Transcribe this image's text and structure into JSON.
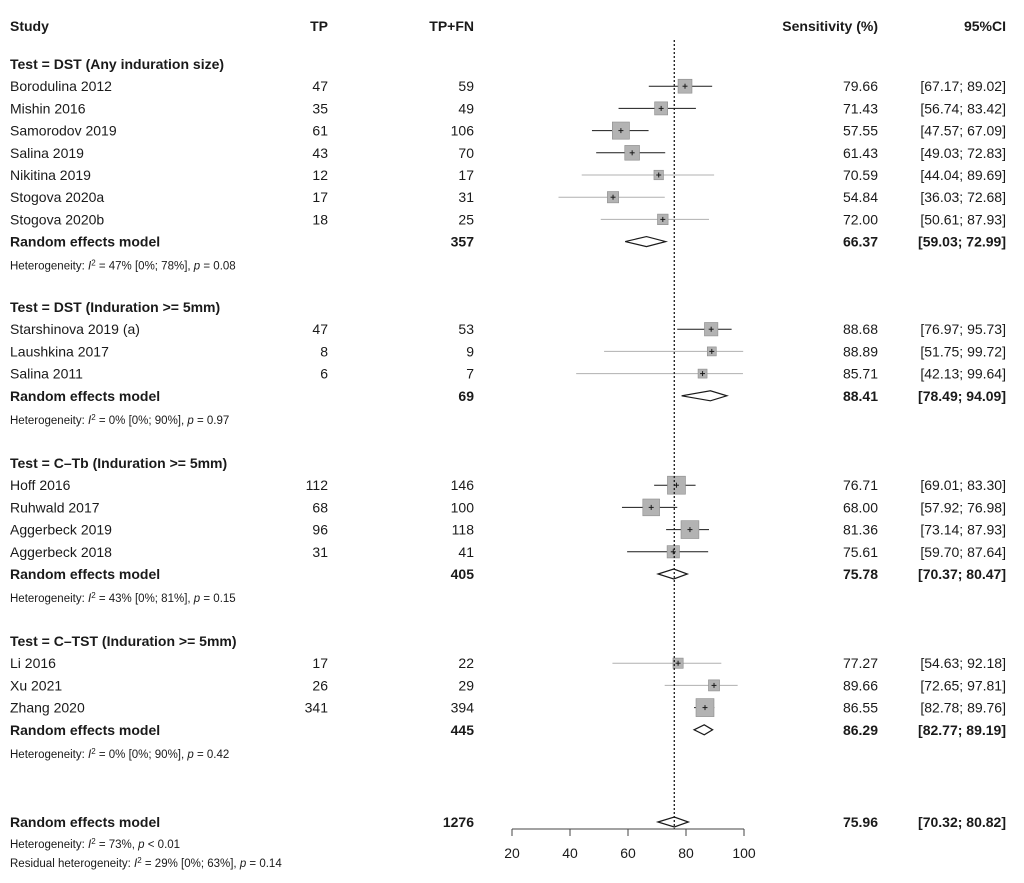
{
  "chart_data": {
    "type": "forest",
    "headers": {
      "study": "Study",
      "tp": "TP",
      "tpfn": "TP+FN",
      "sens": "Sensitivity (%)",
      "ci": "95%CI"
    },
    "xlim": [
      20,
      100
    ],
    "xticks": [
      "20",
      "40",
      "60",
      "80",
      "100"
    ],
    "reference_line": 75.96,
    "groups": [
      {
        "title": "Test = DST (Any induration size)",
        "studies": [
          {
            "name": "Borodulina 2012",
            "tp": "47",
            "tpfn": "59",
            "est": 79.66,
            "lo": 67.17,
            "hi": 89.02,
            "sens": "79.66",
            "ci": "[67.17; 89.02]"
          },
          {
            "name": "Mishin 2016",
            "tp": "35",
            "tpfn": "49",
            "est": 71.43,
            "lo": 56.74,
            "hi": 83.42,
            "sens": "71.43",
            "ci": "[56.74; 83.42]"
          },
          {
            "name": "Samorodov 2019",
            "tp": "61",
            "tpfn": "106",
            "est": 57.55,
            "lo": 47.57,
            "hi": 67.09,
            "sens": "57.55",
            "ci": "[47.57; 67.09]"
          },
          {
            "name": "Salina 2019",
            "tp": "43",
            "tpfn": "70",
            "est": 61.43,
            "lo": 49.03,
            "hi": 72.83,
            "sens": "61.43",
            "ci": "[49.03; 72.83]"
          },
          {
            "name": "Nikitina 2019",
            "tp": "12",
            "tpfn": "17",
            "est": 70.59,
            "lo": 44.04,
            "hi": 89.69,
            "sens": "70.59",
            "ci": "[44.04; 89.69]"
          },
          {
            "name": "Stogova 2020a",
            "tp": "17",
            "tpfn": "31",
            "est": 54.84,
            "lo": 36.03,
            "hi": 72.68,
            "sens": "54.84",
            "ci": "[36.03; 72.68]"
          },
          {
            "name": "Stogova 2020b",
            "tp": "18",
            "tpfn": "25",
            "est": 72.0,
            "lo": 50.61,
            "hi": 87.93,
            "sens": "72.00",
            "ci": "[50.61; 87.93]"
          }
        ],
        "pooled": {
          "label": "Random effects model",
          "tpfn": "357",
          "est": 66.37,
          "lo": 59.03,
          "hi": 72.99,
          "sens": "66.37",
          "ci": "[59.03; 72.99]"
        },
        "het": {
          "prefix": "Heterogeneity: ",
          "i2": "I",
          "sup": "2",
          "rest": " = 47% [0%; 78%], ",
          "p": "p",
          "pval": " = 0.08"
        }
      },
      {
        "title": "Test = DST (Induration >= 5mm)",
        "studies": [
          {
            "name": "Starshinova 2019 (a)",
            "tp": "47",
            "tpfn": "53",
            "est": 88.68,
            "lo": 76.97,
            "hi": 95.73,
            "sens": "88.68",
            "ci": "[76.97; 95.73]"
          },
          {
            "name": "Laushkina 2017",
            "tp": "8",
            "tpfn": "9",
            "est": 88.89,
            "lo": 51.75,
            "hi": 99.72,
            "sens": "88.89",
            "ci": "[51.75; 99.72]"
          },
          {
            "name": "Salina 2011",
            "tp": "6",
            "tpfn": "7",
            "est": 85.71,
            "lo": 42.13,
            "hi": 99.64,
            "sens": "85.71",
            "ci": "[42.13; 99.64]"
          }
        ],
        "pooled": {
          "label": "Random effects model",
          "tpfn": "69",
          "est": 88.41,
          "lo": 78.49,
          "hi": 94.09,
          "sens": "88.41",
          "ci": "[78.49; 94.09]"
        },
        "het": {
          "prefix": "Heterogeneity: ",
          "i2": "I",
          "sup": "2",
          "rest": " = 0% [0%; 90%], ",
          "p": "p",
          "pval": " = 0.97"
        }
      },
      {
        "title": "Test = C–Tb (Induration >= 5mm)",
        "studies": [
          {
            "name": "Hoff 2016",
            "tp": "112",
            "tpfn": "146",
            "est": 76.71,
            "lo": 69.01,
            "hi": 83.3,
            "sens": "76.71",
            "ci": "[69.01; 83.30]"
          },
          {
            "name": "Ruhwald 2017",
            "tp": "68",
            "tpfn": "100",
            "est": 68.0,
            "lo": 57.92,
            "hi": 76.98,
            "sens": "68.00",
            "ci": "[57.92; 76.98]"
          },
          {
            "name": "Aggerbeck 2019",
            "tp": "96",
            "tpfn": "118",
            "est": 81.36,
            "lo": 73.14,
            "hi": 87.93,
            "sens": "81.36",
            "ci": "[73.14; 87.93]"
          },
          {
            "name": "Aggerbeck 2018",
            "tp": "31",
            "tpfn": "41",
            "est": 75.61,
            "lo": 59.7,
            "hi": 87.64,
            "sens": "75.61",
            "ci": "[59.70; 87.64]"
          }
        ],
        "pooled": {
          "label": "Random effects model",
          "tpfn": "405",
          "est": 75.78,
          "lo": 70.37,
          "hi": 80.47,
          "sens": "75.78",
          "ci": "[70.37; 80.47]"
        },
        "het": {
          "prefix": "Heterogeneity: ",
          "i2": "I",
          "sup": "2",
          "rest": " = 43% [0%; 81%], ",
          "p": "p",
          "pval": " = 0.15"
        }
      },
      {
        "title": "Test = C–TST (Induration >= 5mm)",
        "studies": [
          {
            "name": "Li 2016",
            "tp": "17",
            "tpfn": "22",
            "est": 77.27,
            "lo": 54.63,
            "hi": 92.18,
            "sens": "77.27",
            "ci": "[54.63; 92.18]"
          },
          {
            "name": "Xu 2021",
            "tp": "26",
            "tpfn": "29",
            "est": 89.66,
            "lo": 72.65,
            "hi": 97.81,
            "sens": "89.66",
            "ci": "[72.65; 97.81]"
          },
          {
            "name": "Zhang 2020",
            "tp": "341",
            "tpfn": "394",
            "est": 86.55,
            "lo": 82.78,
            "hi": 89.76,
            "sens": "86.55",
            "ci": "[82.78; 89.76]"
          }
        ],
        "pooled": {
          "label": "Random effects model",
          "tpfn": "445",
          "est": 86.29,
          "lo": 82.77,
          "hi": 89.19,
          "sens": "86.29",
          "ci": "[82.77; 89.19]"
        },
        "het": {
          "prefix": "Heterogeneity: ",
          "i2": "I",
          "sup": "2",
          "rest": " = 0% [0%; 90%], ",
          "p": "p",
          "pval": " = 0.42"
        }
      }
    ],
    "overall": {
      "label": "Random effects model",
      "tpfn": "1276",
      "est": 75.96,
      "lo": 70.32,
      "hi": 80.82,
      "sens": "75.96",
      "ci": "[70.32; 80.82]",
      "het": {
        "prefix": "Heterogeneity: ",
        "i2": "I",
        "sup": "2",
        "rest": " = 73%, ",
        "p": "p",
        "pval": " < 0.01"
      },
      "resid": {
        "prefix": "Residual heterogeneity: ",
        "i2": "I",
        "sup": "2",
        "rest": " = 29% [0%; 63%], ",
        "p": "p",
        "pval": " = 0.14"
      }
    },
    "colors": {
      "ink": "#1a1a1a",
      "box": "#b3b3b3",
      "box_stroke": "#8c8c8c",
      "ci_light": "#b0b0b0"
    }
  }
}
